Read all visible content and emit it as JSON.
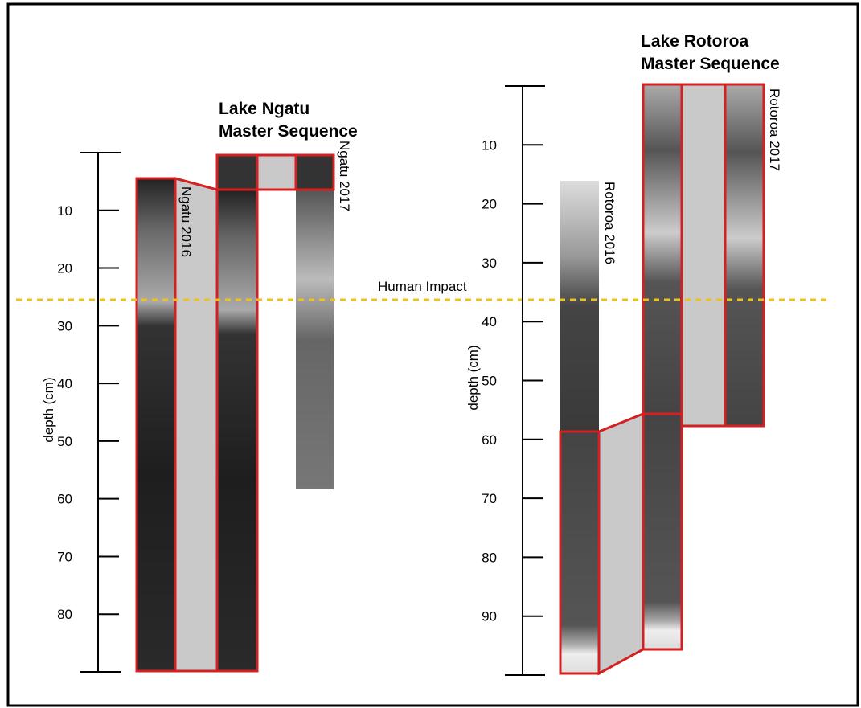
{
  "ngatu": {
    "title_lines": [
      "Lake Ngatu",
      "Master Sequence"
    ],
    "axis_label": "depth (cm)",
    "ylim": [
      0,
      90
    ],
    "yticks": [
      10,
      20,
      30,
      40,
      50,
      60,
      70,
      80
    ],
    "cores": [
      "Ngatu 2016",
      "Ngatu 2017"
    ]
  },
  "rotoroa": {
    "title_lines": [
      "Lake Rotoroa",
      "Master Sequence"
    ],
    "axis_label": "depth (cm)",
    "ylim": [
      0,
      100
    ],
    "yticks": [
      10,
      20,
      30,
      40,
      50,
      60,
      70,
      80,
      90
    ],
    "cores": [
      "Rotoroa 2016",
      "Rotoroa 2017"
    ]
  },
  "annotation": "Human Impact"
}
